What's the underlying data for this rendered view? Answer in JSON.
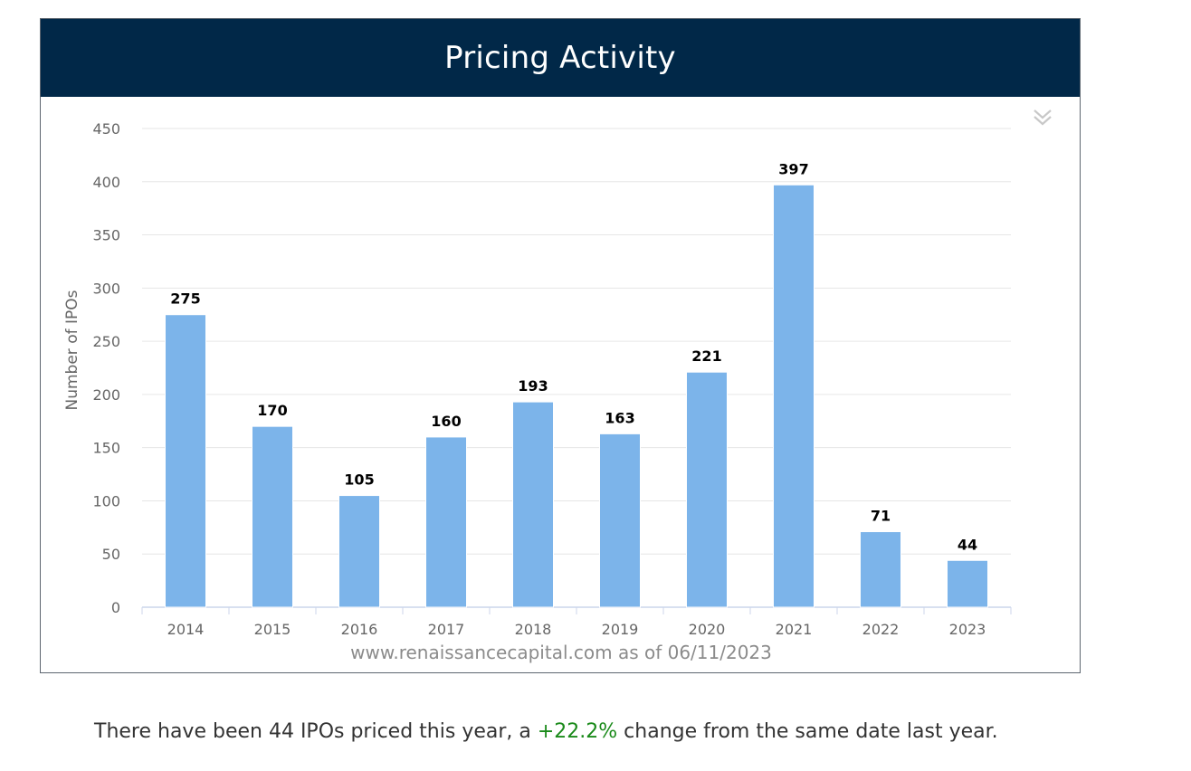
{
  "header": {
    "title": "Pricing Activity"
  },
  "chart_data": {
    "type": "bar",
    "title": "Pricing Activity",
    "xlabel": "",
    "ylabel": "Number of IPOs",
    "categories": [
      "2014",
      "2015",
      "2016",
      "2017",
      "2018",
      "2019",
      "2020",
      "2021",
      "2022",
      "2023"
    ],
    "series": [
      {
        "values": [
          275,
          170,
          105,
          160,
          193,
          163,
          221,
          397,
          71,
          44
        ]
      }
    ],
    "ylim": [
      0,
      450
    ],
    "yticks": [
      0,
      50,
      100,
      150,
      200,
      250,
      300,
      350,
      400,
      450
    ],
    "grid": true,
    "data_labels": true,
    "colors": {
      "bar": "#7cb4ea",
      "grid": "#e6e6e6",
      "axis": "#ccd6eb",
      "label": "#000000",
      "tick": "#666666"
    }
  },
  "footer": {
    "source": "www.renaissancecapital.com as of 06/11/2023"
  },
  "summary": {
    "prefix": "There have been 44 IPOs priced this year, a ",
    "change": "+22.2%",
    "suffix": " change from the same date last year.",
    "change_color": "#1a8a1a"
  },
  "icons": {
    "export": "double-chevron-down-icon"
  }
}
